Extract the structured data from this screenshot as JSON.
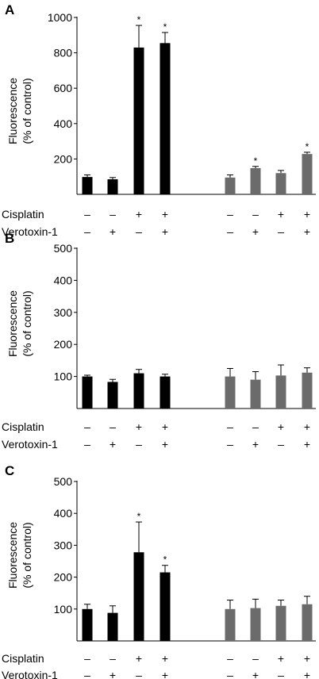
{
  "chart_data": [
    {
      "type": "bar",
      "panel_label": "A",
      "ylabel": [
        "Fluorescence",
        "(% of control)"
      ],
      "ylim": [
        0,
        1000
      ],
      "yticks": [
        200,
        400,
        600,
        800,
        1000
      ],
      "bar_colors": [
        "#000000",
        "#6b6b6b"
      ],
      "series": [
        {
          "values": [
            98,
            85,
            830,
            855
          ],
          "errors": [
            12,
            10,
            125,
            60
          ],
          "significant": [
            false,
            false,
            true,
            true
          ]
        },
        {
          "values": [
            95,
            148,
            120,
            228
          ],
          "errors": [
            15,
            10,
            15,
            10
          ],
          "significant": [
            false,
            true,
            false,
            true
          ]
        }
      ]
    },
    {
      "type": "bar",
      "panel_label": "B",
      "ylabel": [
        "Fluorescence",
        "(% of control)"
      ],
      "ylim": [
        0,
        500
      ],
      "yticks": [
        100,
        200,
        300,
        400,
        500
      ],
      "bar_colors": [
        "#000000",
        "#6b6b6b"
      ],
      "series": [
        {
          "values": [
            100,
            83,
            110,
            100
          ],
          "errors": [
            4,
            8,
            12,
            7
          ],
          "significant": [
            false,
            false,
            false,
            false
          ]
        },
        {
          "values": [
            100,
            90,
            103,
            112
          ],
          "errors": [
            25,
            25,
            33,
            15
          ],
          "significant": [
            false,
            false,
            false,
            false
          ]
        }
      ]
    },
    {
      "type": "bar",
      "panel_label": "C",
      "ylabel": [
        "Fluorescence",
        "(% of control)"
      ],
      "ylim": [
        0,
        500
      ],
      "yticks": [
        100,
        200,
        300,
        400,
        500
      ],
      "bar_colors": [
        "#000000",
        "#6b6b6b"
      ],
      "series": [
        {
          "values": [
            100,
            88,
            278,
            215
          ],
          "errors": [
            15,
            22,
            95,
            22
          ],
          "significant": [
            false,
            false,
            true,
            true
          ]
        },
        {
          "values": [
            100,
            103,
            110,
            115
          ],
          "errors": [
            28,
            28,
            18,
            25
          ],
          "significant": [
            false,
            false,
            false,
            false
          ]
        }
      ]
    }
  ],
  "treatment_rows": [
    {
      "label": "Cisplatin",
      "signs": [
        "–",
        "–",
        "+",
        "+",
        "–",
        "–",
        "+",
        "+"
      ]
    },
    {
      "label": "Verotoxin-1",
      "signs": [
        "–",
        "+",
        "–",
        "+",
        "–",
        "+",
        "–",
        "+"
      ]
    }
  ],
  "significance_mark": "*"
}
